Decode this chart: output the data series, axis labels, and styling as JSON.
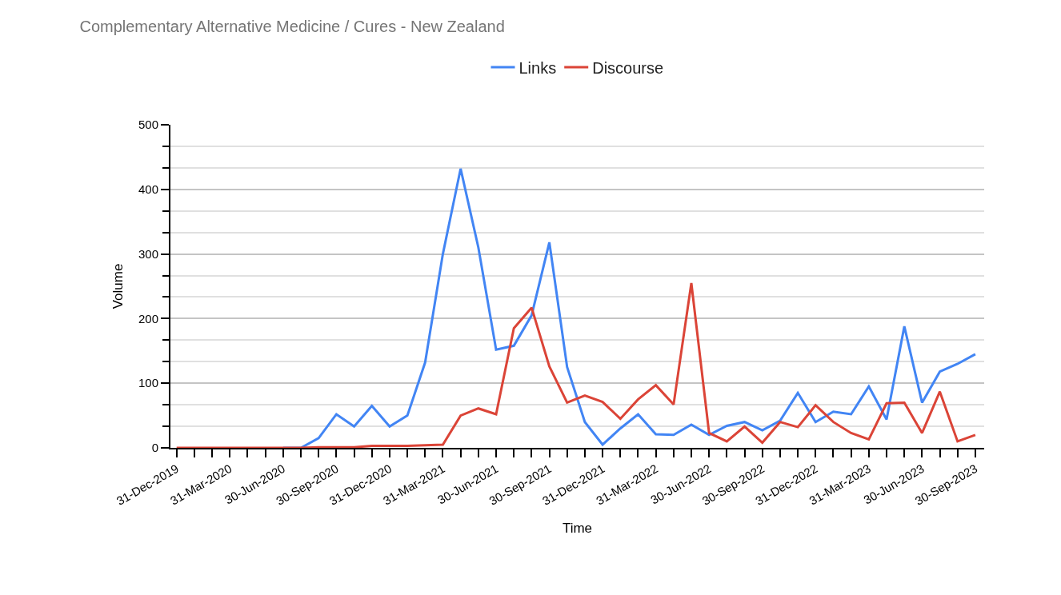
{
  "chart_data": {
    "type": "line",
    "title": "Complementary Alternative Medicine / Cures - New Zealand",
    "xlabel": "Time",
    "ylabel": "Volume",
    "categories": [
      "31-Dec-2019",
      null,
      null,
      "31-Mar-2020",
      null,
      null,
      "30-Jun-2020",
      null,
      null,
      "30-Sep-2020",
      null,
      null,
      "31-Dec-2020",
      null,
      null,
      "31-Mar-2021",
      null,
      null,
      "30-Jun-2021",
      null,
      null,
      "30-Sep-2021",
      null,
      null,
      "31-Dec-2021",
      null,
      null,
      "31-Mar-2022",
      null,
      null,
      "30-Jun-2022",
      null,
      null,
      "30-Sep-2022",
      null,
      null,
      "31-Dec-2022",
      null,
      null,
      "31-Mar-2023",
      null,
      null,
      "30-Jun-2023",
      null,
      null,
      "30-Sep-2023"
    ],
    "series": [
      {
        "name": "Links",
        "color": "#4285f4",
        "values": [
          null,
          null,
          null,
          null,
          null,
          null,
          0,
          0,
          15,
          52,
          33,
          65,
          33,
          50,
          132,
          300,
          432,
          310,
          152,
          158,
          205,
          318,
          125,
          40,
          5,
          30,
          52,
          21,
          20,
          36,
          20,
          34,
          40,
          27,
          42,
          85,
          40,
          56,
          52,
          95,
          44,
          188,
          70,
          118,
          130,
          145
        ]
      },
      {
        "name": "Discourse",
        "color": "#db4437",
        "values": [
          0,
          0,
          0,
          0,
          0,
          0,
          0,
          0,
          1,
          1,
          1,
          3,
          3,
          3,
          4,
          5,
          50,
          61,
          52,
          185,
          217,
          126,
          70,
          81,
          71,
          45,
          75,
          97,
          67,
          255,
          23,
          10,
          33,
          8,
          40,
          32,
          66,
          40,
          23,
          13,
          69,
          70,
          23,
          87,
          10,
          20
        ]
      }
    ],
    "ylim": [
      0,
      500
    ],
    "yticks": [
      0,
      100,
      200,
      300,
      400,
      500
    ],
    "grid": "y",
    "legend": "top",
    "marker": "none",
    "line_style": "solid"
  }
}
